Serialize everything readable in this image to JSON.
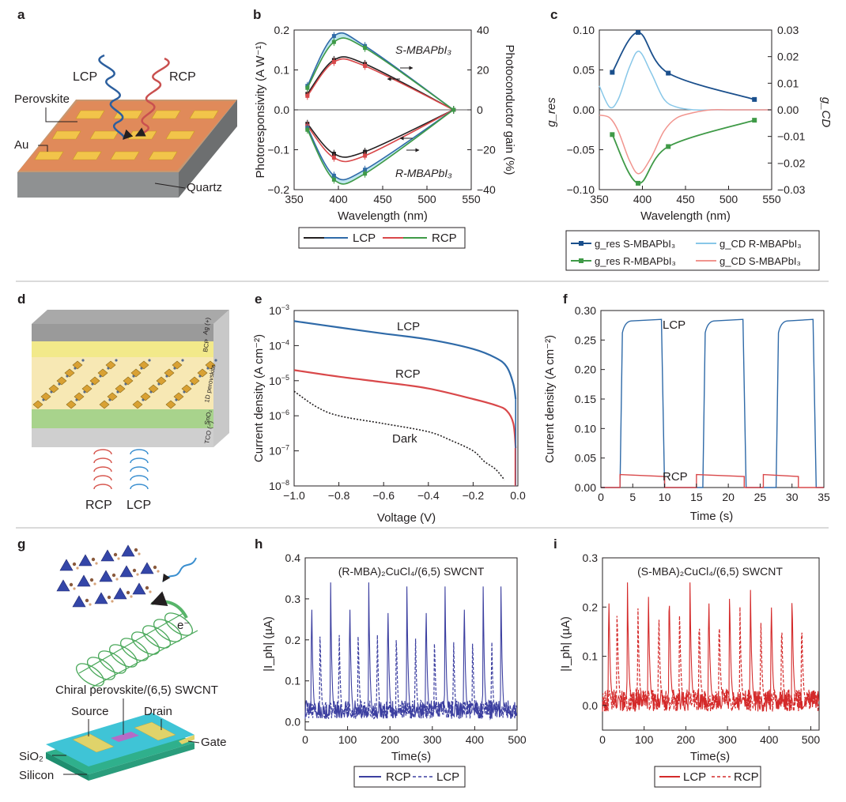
{
  "panels": {
    "a": {
      "label": "a",
      "lcp": "LCP",
      "rcp": "RCP",
      "perovskite": "Perovskite",
      "au": "Au",
      "quartz": "Quartz"
    },
    "b": {
      "label": "b"
    },
    "c": {
      "label": "c"
    },
    "d": {
      "label": "d",
      "rcp": "RCP",
      "lcp": "LCP",
      "layers": {
        "ag": "Ag (+)",
        "bcp": "BCP",
        "perov": "1D perovskite",
        "sno2": "SnO₂",
        "tco": "TCO (−)"
      }
    },
    "e": {
      "label": "e"
    },
    "f": {
      "label": "f"
    },
    "g": {
      "label": "g",
      "electron": "e⁻",
      "device_title": "Chiral perovskite/(6,5) SWCNT",
      "source": "Source",
      "drain": "Drain",
      "gate": "Gate",
      "sio2": "SiO₂",
      "silicon": "Silicon"
    },
    "h": {
      "label": "h"
    },
    "i": {
      "label": "i"
    }
  },
  "colors": {
    "black": "#231f20",
    "blue": "#2f6aa8",
    "red": "#d9484a",
    "green": "#3f9a47",
    "navy": "#1a4f8c",
    "lightblue": "#88c7e8",
    "pink": "#f1948e",
    "hblue": "#3c3fa0",
    "ired": "#d42a2a"
  },
  "chart_data": [
    {
      "id": "b",
      "type": "line",
      "xlabel": "Wavelength (nm)",
      "ylabel": "Photoresponsivity (A W⁻¹)",
      "ylabel_right": "Photoconductor gain (%)",
      "xlim": [
        350,
        550
      ],
      "ylim": [
        -0.2,
        0.2
      ],
      "ylim_right": [
        -40,
        40
      ],
      "xticks": [
        "350",
        "400",
        "450",
        "500",
        "550"
      ],
      "yticks": [
        "−0.2",
        "−0.1",
        "0.0",
        "0.1",
        "0.2"
      ],
      "yticks_right": [
        "−40",
        "−20",
        "0",
        "20",
        "40"
      ],
      "annotations": [
        "S-MBAPbI₃",
        "R-MBAPbI₃"
      ],
      "legend": [
        "LCP",
        "RCP"
      ],
      "x": [
        365,
        395,
        430,
        530
      ],
      "series": [
        {
          "name": "LCP",
          "group": "S-MBAPbI3 responsivity",
          "values": [
            0.04,
            0.125,
            0.115,
            0.0
          ]
        },
        {
          "name": "RCP",
          "group": "S-MBAPbI3 responsivity",
          "values": [
            0.035,
            0.12,
            0.11,
            0.0
          ]
        },
        {
          "name": "LCP",
          "group": "S-MBAPbI3 gain",
          "values": [
            0.06,
            0.185,
            0.16,
            0.0
          ]
        },
        {
          "name": "RCP",
          "group": "S-MBAPbI3 gain",
          "values": [
            0.055,
            0.17,
            0.155,
            0.0
          ]
        },
        {
          "name": "LCP",
          "group": "R-MBAPbI3 responsivity",
          "values": [
            -0.035,
            -0.11,
            -0.105,
            0.0
          ]
        },
        {
          "name": "RCP",
          "group": "R-MBAPbI3 responsivity",
          "values": [
            -0.04,
            -0.12,
            -0.115,
            0.0
          ]
        },
        {
          "name": "LCP",
          "group": "R-MBAPbI3 gain",
          "values": [
            -0.045,
            -0.165,
            -0.15,
            0.0
          ]
        },
        {
          "name": "RCP",
          "group": "R-MBAPbI3 gain",
          "values": [
            -0.05,
            -0.175,
            -0.16,
            0.0
          ]
        }
      ]
    },
    {
      "id": "c",
      "type": "line",
      "xlabel": "Wavelength (nm)",
      "ylabel": "g_res",
      "ylabel_right": "g_CD",
      "xlim": [
        350,
        550
      ],
      "ylim": [
        -0.1,
        0.1
      ],
      "ylim_right": [
        -0.03,
        0.03
      ],
      "xticks": [
        "350",
        "400",
        "450",
        "500",
        "550"
      ],
      "yticks": [
        "−0.10",
        "−0.05",
        "0.00",
        "0.05",
        "0.10"
      ],
      "yticks_right": [
        "−0.03",
        "−0.02",
        "−0.01",
        "0.00",
        "0.01",
        "0.02",
        "0.03"
      ],
      "legend": [
        "g_res S-MBAPbI₃",
        "g_res R-MBAPbI₃",
        "g_CD R-MBAPbI₃",
        "g_CD S-MBAPbI₃"
      ],
      "series": [
        {
          "name": "g_res S-MBAPbI3",
          "x": [
            365,
            395,
            430,
            530
          ],
          "values": [
            0.047,
            0.097,
            0.046,
            0.013
          ]
        },
        {
          "name": "g_res R-MBAPbI3",
          "x": [
            365,
            395,
            430,
            530
          ],
          "values": [
            -0.031,
            -0.092,
            -0.046,
            -0.013
          ]
        },
        {
          "name": "g_CD R-MBAPbI3",
          "x": [
            350,
            362,
            372,
            385,
            396,
            410,
            425,
            440,
            460,
            480,
            500,
            520,
            540,
            550
          ],
          "values": [
            0.009,
            0.001,
            0.004,
            0.016,
            0.022,
            0.014,
            0.004,
            0.001,
            0.0,
            0.0,
            0.0,
            0.0,
            0.0,
            0.0
          ]
        },
        {
          "name": "g_CD S-MBAPbI3",
          "x": [
            350,
            362,
            372,
            385,
            396,
            410,
            425,
            440,
            460,
            480,
            500,
            520,
            540,
            550
          ],
          "values": [
            -0.002,
            -0.003,
            -0.008,
            -0.019,
            -0.024,
            -0.018,
            -0.008,
            -0.003,
            -0.001,
            0.0,
            0.0,
            0.0,
            0.0,
            0.0
          ]
        }
      ]
    },
    {
      "id": "e",
      "type": "line",
      "xlabel": "Voltage (V)",
      "ylabel": "Current density (A cm⁻²)",
      "xlim": [
        -1.0,
        0.0
      ],
      "ylim": [
        1e-08,
        0.001
      ],
      "yscale": "log",
      "xticks": [
        "−1.0",
        "−0.8",
        "−0.6",
        "−0.4",
        "−0.2",
        "0.0"
      ],
      "series": [
        {
          "name": "LCP",
          "x": [
            -1.0,
            -0.8,
            -0.6,
            -0.4,
            -0.2,
            -0.1,
            -0.05,
            -0.02,
            -0.01
          ],
          "values": [
            0.0005,
            0.00033,
            0.00022,
            0.00015,
            8e-05,
            4.5e-05,
            2.5e-05,
            8e-06,
            3e-06
          ]
        },
        {
          "name": "RCP",
          "x": [
            -1.0,
            -0.8,
            -0.6,
            -0.4,
            -0.2,
            -0.1,
            -0.05,
            -0.02,
            -0.01
          ],
          "values": [
            2e-05,
            1.3e-05,
            9e-06,
            6e-06,
            3e-06,
            2e-06,
            1.4e-06,
            6e-07,
            1.2e-07
          ]
        },
        {
          "name": "Dark",
          "x": [
            -1.0,
            -0.9,
            -0.8,
            -0.6,
            -0.4,
            -0.3,
            -0.2,
            -0.15,
            -0.1,
            -0.06
          ],
          "values": [
            5e-06,
            1.8e-06,
            1e-06,
            6e-07,
            3.5e-07,
            2e-07,
            1e-07,
            5e-08,
            3e-08,
            1.5e-08
          ]
        }
      ]
    },
    {
      "id": "f",
      "type": "line",
      "xlabel": "Time (s)",
      "ylabel": "Current density (A cm⁻²)",
      "xlim": [
        0,
        35
      ],
      "ylim": [
        0,
        0.3
      ],
      "xticks": [
        "0",
        "5",
        "10",
        "15",
        "20",
        "25",
        "30",
        "35"
      ],
      "yticks": [
        "0.00",
        "0.05",
        "0.10",
        "0.15",
        "0.20",
        "0.25",
        "0.30"
      ],
      "annotations": [
        "LCP",
        "RCP"
      ],
      "series": [
        {
          "name": "LCP",
          "on_intervals": [
            [
              3,
              9.5
            ],
            [
              16,
              22.3
            ],
            [
              27.5,
              33.3
            ]
          ],
          "on_level": 0.285
        },
        {
          "name": "RCP",
          "on_intervals": [
            [
              3,
              10
            ],
            [
              15,
              22.5
            ],
            [
              25.5,
              31
            ]
          ],
          "on_level": 0.022
        }
      ]
    },
    {
      "id": "h",
      "type": "line",
      "title": "(R-MBA)₂CuCl₄/(6,5) SWCNT",
      "xlabel": "Time(s)",
      "ylabel": "|I_ph| (µA)",
      "xlim": [
        0,
        500
      ],
      "ylim": [
        -0.02,
        0.4
      ],
      "xticks": [
        "0",
        "100",
        "200",
        "300",
        "400",
        "500"
      ],
      "yticks": [
        "0.0",
        "0.1",
        "0.2",
        "0.3",
        "0.4"
      ],
      "legend": [
        "RCP",
        "LCP"
      ],
      "series": [
        {
          "name": "RCP",
          "pulse_times": [
            15,
            60,
            105,
            150,
            195,
            240,
            285,
            330,
            375,
            420,
            462
          ],
          "pulse_heights": [
            0.33,
            0.34,
            0.33,
            0.34,
            0.32,
            0.33,
            0.32,
            0.33,
            0.33,
            0.33,
            0.33
          ],
          "baseline": 0.03
        },
        {
          "name": "LCP",
          "pulse_times": [
            35,
            80,
            125,
            170,
            215,
            260,
            305,
            350,
            395,
            440
          ],
          "pulse_heights": [
            0.24,
            0.24,
            0.24,
            0.24,
            0.23,
            0.23,
            0.22,
            0.22,
            0.22,
            0.22
          ],
          "baseline": 0.03
        }
      ]
    },
    {
      "id": "i",
      "type": "line",
      "title": "(S-MBA)₂CuCl₄/(6,5) SWCNT",
      "xlabel": "Time(s)",
      "ylabel": "|I_ph| (µA)",
      "xlim": [
        0,
        520
      ],
      "ylim": [
        -0.05,
        0.3
      ],
      "xticks": [
        "0",
        "100",
        "200",
        "300",
        "400",
        "500"
      ],
      "yticks": [
        "0.0",
        "0.1",
        "0.2",
        "0.3"
      ],
      "legend": [
        "LCP",
        "RCP"
      ],
      "series": [
        {
          "name": "LCP",
          "pulse_times": [
            15,
            60,
            110,
            160,
            210,
            255,
            305,
            355,
            405,
            455
          ],
          "pulse_heights": [
            0.25,
            0.25,
            0.25,
            0.26,
            0.25,
            0.25,
            0.25,
            0.25,
            0.24,
            0.24
          ],
          "baseline": 0.01
        },
        {
          "name": "RCP",
          "pulse_times": [
            35,
            85,
            135,
            185,
            232,
            280,
            330,
            380,
            430,
            478
          ],
          "pulse_heights": [
            0.21,
            0.21,
            0.21,
            0.21,
            0.2,
            0.2,
            0.2,
            0.19,
            0.19,
            0.19
          ],
          "baseline": 0.01
        }
      ]
    }
  ]
}
